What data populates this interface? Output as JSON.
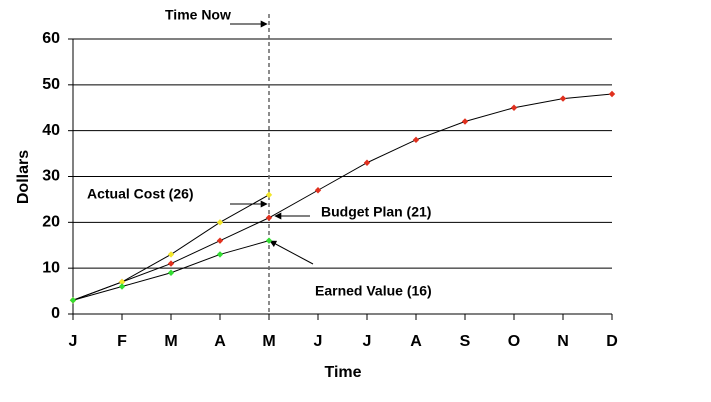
{
  "chart_data": {
    "type": "line",
    "x_label": "Time",
    "y_label": "Dollars",
    "categories": [
      "J",
      "F",
      "M",
      "A",
      "M",
      "J",
      "J",
      "A",
      "S",
      "O",
      "N",
      "D"
    ],
    "series": [
      {
        "name": "Budget Plan",
        "color": "#e0301e",
        "values": [
          3,
          7,
          11,
          16,
          21,
          27,
          33,
          38,
          42,
          45,
          47,
          48
        ]
      },
      {
        "name": "Actual Cost",
        "color": "#f2e62a",
        "values": [
          3,
          7,
          13,
          20,
          26,
          null,
          null,
          null,
          null,
          null,
          null,
          null
        ]
      },
      {
        "name": "Earned Value",
        "color": "#33dd33",
        "values": [
          3,
          6,
          9,
          13,
          16,
          null,
          null,
          null,
          null,
          null,
          null,
          null
        ]
      }
    ],
    "annotations": [
      "Time Now",
      "Actual Cost (26)",
      "Budget Plan (21)",
      "Earned Value (16)"
    ],
    "ylim": [
      0,
      60
    ],
    "yticks": [
      0,
      10,
      20,
      30,
      40,
      50,
      60
    ],
    "grid": true
  }
}
